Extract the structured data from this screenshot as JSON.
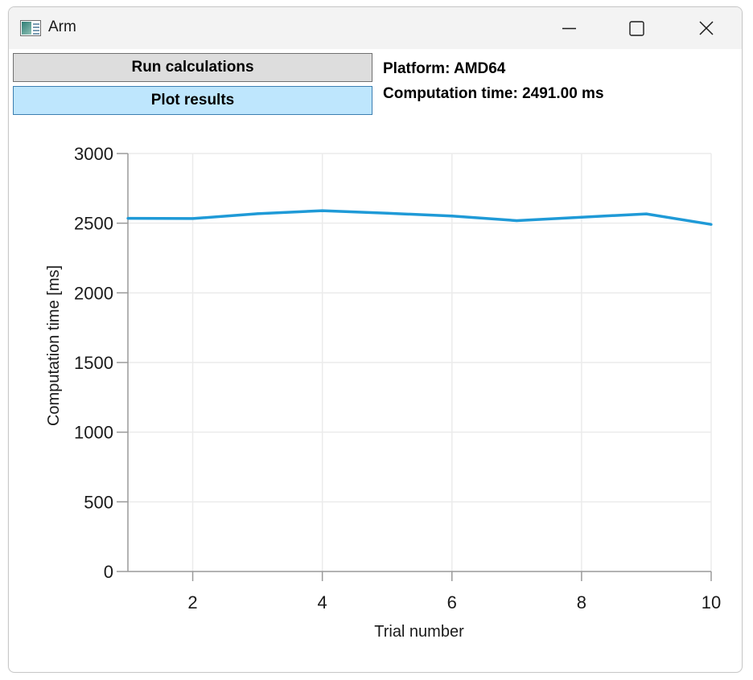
{
  "window": {
    "title": "Arm",
    "icon": "app-chart-icon",
    "controls": [
      "minimize-icon",
      "maximize-icon",
      "close-icon"
    ]
  },
  "toolbar": {
    "run_label": "Run calculations",
    "plot_label": "Plot results"
  },
  "info": {
    "platform": "Platform: AMD64",
    "computation_time": "Computation time: 2491.00 ms"
  },
  "colors": {
    "series": "#1f9ad7",
    "plot_button_bg": "#bee6fd",
    "run_button_bg": "#dddddd",
    "grid": "#ebebeb",
    "axis": "#9a9a9a"
  },
  "chart_data": {
    "type": "line",
    "x": [
      1,
      2,
      3,
      4,
      5,
      6,
      7,
      8,
      9,
      10
    ],
    "series": [
      {
        "values": [
          2535,
          2533,
          2568,
          2590,
          2572,
          2551,
          2518,
          2543,
          2567,
          2491
        ]
      }
    ],
    "xlabel": "Trial number",
    "ylabel": "Computation time [ms]",
    "xlim": [
      1,
      10
    ],
    "ylim": [
      0,
      3000
    ],
    "x_ticks": [
      2,
      4,
      6,
      8,
      10
    ],
    "y_ticks": [
      0,
      500,
      1000,
      1500,
      2000,
      2500,
      3000
    ],
    "grid": true
  }
}
